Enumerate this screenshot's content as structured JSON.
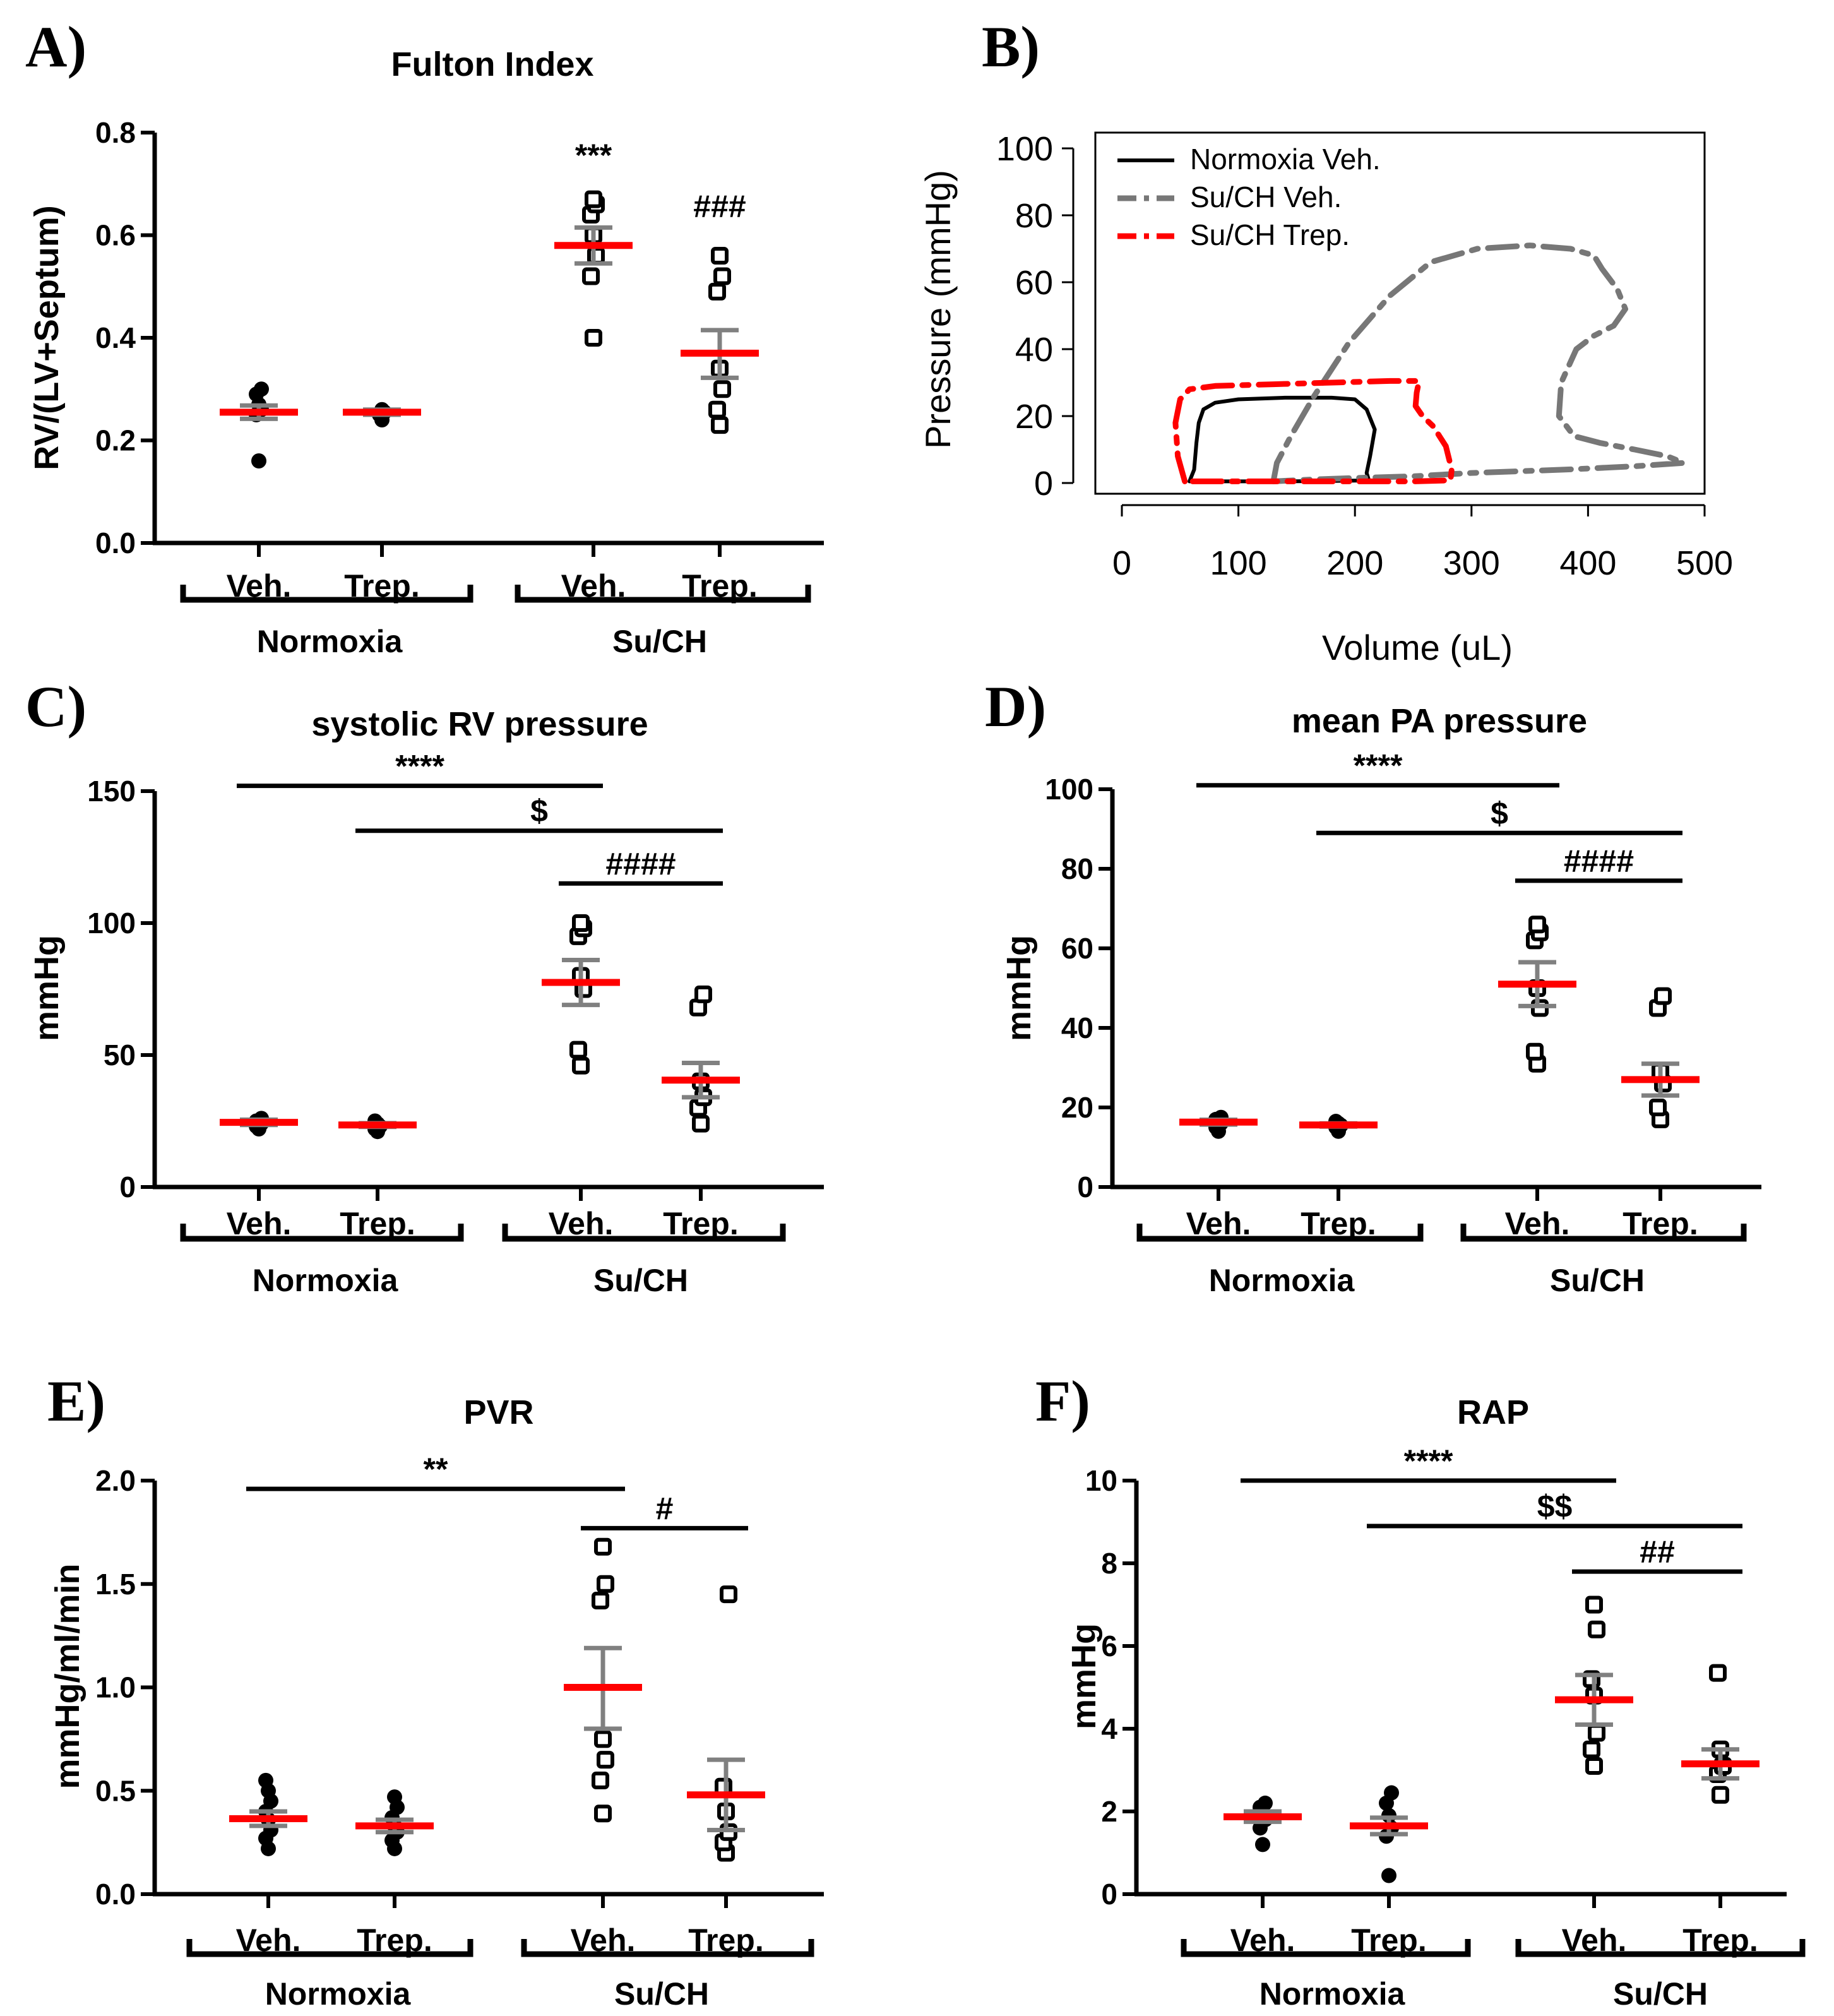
{
  "chart_data": [
    {
      "id": "A",
      "panel_label": "A)",
      "type": "scatter",
      "title": "Fulton Index",
      "ylabel": "RV/(LV+Septum)",
      "ylim": [
        0,
        0.8
      ],
      "yticks": [
        0.0,
        0.2,
        0.4,
        0.6,
        0.8
      ],
      "ytick_labels": [
        "0.0",
        "0.2",
        "0.4",
        "0.6",
        "0.8"
      ],
      "groups": [
        {
          "condition": "Normoxia",
          "treatment": "Veh.",
          "marker": "filled-circle",
          "points": [
            0.16,
            0.25,
            0.26,
            0.27,
            0.29,
            0.3
          ],
          "mean": 0.255,
          "sem": [
            0.242,
            0.268
          ]
        },
        {
          "condition": "Normoxia",
          "treatment": "Trep.",
          "marker": "filled-circle",
          "points": [
            0.24,
            0.25,
            0.255,
            0.26
          ],
          "mean": 0.255,
          "sem": [
            0.25,
            0.26
          ]
        },
        {
          "condition": "Su/CH",
          "treatment": "Veh.",
          "marker": "open-square",
          "points": [
            0.4,
            0.52,
            0.56,
            0.6,
            0.64,
            0.66,
            0.67
          ],
          "mean": 0.58,
          "sem": [
            0.545,
            0.615
          ]
        },
        {
          "condition": "Su/CH",
          "treatment": "Trep.",
          "marker": "open-square",
          "points": [
            0.23,
            0.26,
            0.3,
            0.34,
            0.49,
            0.52,
            0.56
          ],
          "mean": 0.37,
          "sem": [
            0.322,
            0.415
          ]
        }
      ],
      "category_labels": [
        "Veh.",
        "Trep.",
        "Veh.",
        "Trep."
      ],
      "group_labels": [
        "Normoxia",
        "Su/CH"
      ],
      "annotations": [
        {
          "text": "***",
          "group_index": 2,
          "y": 0.735
        },
        {
          "text": "###",
          "group_index": 3,
          "y": 0.635
        }
      ]
    },
    {
      "id": "B",
      "panel_label": "B)",
      "type": "line",
      "title": "",
      "xlabel": "Volume (uL)",
      "ylabel": "Pressure (mmHg)",
      "xlim": [
        0,
        500
      ],
      "ylim": [
        0,
        100
      ],
      "xticks": [
        0,
        100,
        200,
        300,
        400,
        500
      ],
      "yticks": [
        0,
        20,
        40,
        60,
        80,
        100
      ],
      "legend": {
        "placement": "top-left",
        "entries": [
          "Normoxia Veh.",
          "Su/CH Veh.",
          "Su/CH Trep."
        ]
      },
      "series": [
        {
          "name": "Normoxia Veh.",
          "color": "#000000",
          "dash": "solid",
          "points": [
            [
              58,
              0.5
            ],
            [
              62,
              4
            ],
            [
              64,
              12
            ],
            [
              66,
              18
            ],
            [
              70,
              22
            ],
            [
              80,
              24
            ],
            [
              100,
              25
            ],
            [
              140,
              25.5
            ],
            [
              180,
              25.5
            ],
            [
              200,
              25
            ],
            [
              210,
              22
            ],
            [
              217,
              16
            ],
            [
              213,
              8
            ],
            [
              210,
              3
            ],
            [
              212,
              0.8
            ],
            [
              180,
              0.6
            ],
            [
              140,
              0.5
            ],
            [
              100,
              0.5
            ],
            [
              58,
              0.5
            ]
          ]
        },
        {
          "name": "Su/CH Veh.",
          "color": "#777777",
          "dash": "dashdot",
          "points": [
            [
              130,
              0.5
            ],
            [
              133,
              6
            ],
            [
              145,
              14
            ],
            [
              165,
              26
            ],
            [
              195,
              42
            ],
            [
              230,
              56
            ],
            [
              265,
              66
            ],
            [
              305,
              70
            ],
            [
              350,
              71
            ],
            [
              385,
              70
            ],
            [
              405,
              68
            ],
            [
              412,
              64
            ],
            [
              425,
              58
            ],
            [
              432,
              52
            ],
            [
              422,
              47
            ],
            [
              405,
              44
            ],
            [
              390,
              40
            ],
            [
              377,
              30
            ],
            [
              375,
              20
            ],
            [
              388,
              14
            ],
            [
              410,
              12
            ],
            [
              440,
              10
            ],
            [
              468,
              8
            ],
            [
              482,
              6
            ],
            [
              440,
              5
            ],
            [
              380,
              4
            ],
            [
              300,
              3
            ],
            [
              250,
              2
            ],
            [
              200,
              1.5
            ],
            [
              160,
              1
            ],
            [
              130,
              0.5
            ]
          ]
        },
        {
          "name": "Su/CH Trep.",
          "color": "#ff0000",
          "dash": "dashdot",
          "points": [
            [
              54,
              0.5
            ],
            [
              48,
              8
            ],
            [
              46,
              18
            ],
            [
              50,
              25
            ],
            [
              58,
              28
            ],
            [
              80,
              29
            ],
            [
              130,
              29.5
            ],
            [
              180,
              30
            ],
            [
              230,
              30.5
            ],
            [
              255,
              30.5
            ],
            [
              253,
              27
            ],
            [
              252,
              23
            ],
            [
              258,
              20
            ],
            [
              267,
              17
            ],
            [
              278,
              11
            ],
            [
              283,
              4
            ],
            [
              282,
              0.8
            ],
            [
              250,
              0.5
            ],
            [
              200,
              0.5
            ],
            [
              150,
              0.5
            ],
            [
              100,
              0.5
            ],
            [
              54,
              0.5
            ]
          ]
        }
      ]
    },
    {
      "id": "C",
      "panel_label": "C)",
      "type": "scatter",
      "title": "systolic RV pressure",
      "ylabel": "mmHg",
      "ylim": [
        0,
        150
      ],
      "yticks": [
        0,
        50,
        100,
        150
      ],
      "ytick_labels": [
        "0",
        "50",
        "100",
        "150"
      ],
      "groups": [
        {
          "condition": "Normoxia",
          "treatment": "Veh.",
          "marker": "filled-circle",
          "points": [
            22,
            23,
            24,
            24.5,
            25,
            26
          ],
          "mean": 24.5,
          "sem": [
            23.5,
            25.5
          ]
        },
        {
          "condition": "Normoxia",
          "treatment": "Trep.",
          "marker": "filled-circle",
          "points": [
            21,
            22,
            23,
            24,
            25
          ],
          "mean": 23.5,
          "sem": [
            22.8,
            24.2
          ]
        },
        {
          "condition": "Su/CH",
          "treatment": "Veh.",
          "marker": "open-square",
          "points": [
            46,
            52,
            75,
            80,
            95,
            98,
            100
          ],
          "mean": 77.5,
          "sem": [
            69,
            86
          ]
        },
        {
          "condition": "Su/CH",
          "treatment": "Trep.",
          "marker": "open-square",
          "points": [
            24,
            30,
            34,
            40,
            68,
            73
          ],
          "mean": 40.5,
          "sem": [
            34,
            47
          ]
        }
      ],
      "category_labels": [
        "Veh.",
        "Trep.",
        "Veh.",
        "Trep."
      ],
      "group_labels": [
        "Normoxia",
        "Su/CH"
      ],
      "brackets": [
        {
          "text": "****",
          "from_group": 0,
          "to_group": 2,
          "y": 152
        },
        {
          "text": "$",
          "from_group": 1,
          "to_group": 3,
          "y": 135
        },
        {
          "text": "####",
          "from_group": 2,
          "to_group": 3,
          "y": 115
        }
      ]
    },
    {
      "id": "D",
      "panel_label": "D)",
      "type": "scatter",
      "title": "mean PA pressure",
      "ylabel": "mmHg",
      "ylim": [
        0,
        100
      ],
      "yticks": [
        0,
        20,
        40,
        60,
        80,
        100
      ],
      "ytick_labels": [
        "0",
        "20",
        "40",
        "60",
        "80",
        "100"
      ],
      "groups": [
        {
          "condition": "Normoxia",
          "treatment": "Veh.",
          "marker": "filled-circle",
          "points": [
            14,
            15,
            16,
            16.5,
            17,
            17.5
          ],
          "mean": 16.3,
          "sem": [
            15.7,
            16.9
          ]
        },
        {
          "condition": "Normoxia",
          "treatment": "Trep.",
          "marker": "filled-circle",
          "points": [
            14,
            15,
            15.5,
            16,
            16.5
          ],
          "mean": 15.6,
          "sem": [
            15.2,
            16.0
          ]
        },
        {
          "condition": "Su/CH",
          "treatment": "Veh.",
          "marker": "open-square",
          "points": [
            31,
            34,
            45,
            50,
            62,
            64,
            66
          ],
          "mean": 51,
          "sem": [
            45.5,
            56.5
          ]
        },
        {
          "condition": "Su/CH",
          "treatment": "Trep.",
          "marker": "open-square",
          "points": [
            17,
            20,
            26,
            29,
            45,
            48
          ],
          "mean": 27,
          "sem": [
            23,
            31
          ]
        }
      ],
      "category_labels": [
        "Veh.",
        "Trep.",
        "Veh.",
        "Trep."
      ],
      "group_labels": [
        "Normoxia",
        "Su/CH"
      ],
      "brackets": [
        {
          "text": "****",
          "from_group": 0,
          "to_group": 2,
          "y": 101
        },
        {
          "text": "$",
          "from_group": 1,
          "to_group": 3,
          "y": 89
        },
        {
          "text": "####",
          "from_group": 2,
          "to_group": 3,
          "y": 77
        }
      ]
    },
    {
      "id": "E",
      "panel_label": "E)",
      "type": "scatter",
      "title": "PVR",
      "ylabel": "mmHg/ml/min",
      "ylim": [
        0,
        2.0
      ],
      "yticks": [
        0.0,
        0.5,
        1.0,
        1.5,
        2.0
      ],
      "ytick_labels": [
        "0.0",
        "0.5",
        "1.0",
        "1.5",
        "2.0"
      ],
      "groups": [
        {
          "condition": "Normoxia",
          "treatment": "Veh.",
          "marker": "filled-circle",
          "points": [
            0.22,
            0.27,
            0.31,
            0.36,
            0.4,
            0.45,
            0.5,
            0.55
          ],
          "mean": 0.365,
          "sem": [
            0.33,
            0.4
          ]
        },
        {
          "condition": "Normoxia",
          "treatment": "Trep.",
          "marker": "filled-circle",
          "points": [
            0.22,
            0.26,
            0.3,
            0.33,
            0.37,
            0.42,
            0.47
          ],
          "mean": 0.33,
          "sem": [
            0.3,
            0.36
          ]
        },
        {
          "condition": "Su/CH",
          "treatment": "Veh.",
          "marker": "open-square",
          "points": [
            0.39,
            0.55,
            0.65,
            0.75,
            1.42,
            1.5,
            1.68
          ],
          "mean": 1.0,
          "sem": [
            0.8,
            1.19
          ]
        },
        {
          "condition": "Su/CH",
          "treatment": "Trep.",
          "marker": "open-square",
          "points": [
            0.2,
            0.25,
            0.3,
            0.4,
            0.52,
            1.45
          ],
          "mean": 0.48,
          "sem": [
            0.31,
            0.65
          ]
        }
      ],
      "category_labels": [
        "Veh.",
        "Trep.",
        "Veh.",
        "Trep."
      ],
      "group_labels": [
        "Normoxia",
        "Su/CH"
      ],
      "brackets": [
        {
          "text": "**",
          "from_group": 0,
          "to_group": 2,
          "y": 1.96
        },
        {
          "text": "#",
          "from_group": 2,
          "to_group": 3,
          "y": 1.77
        }
      ]
    },
    {
      "id": "F",
      "panel_label": "F)",
      "type": "scatter",
      "title": "RAP",
      "ylabel": "mmHg",
      "ylim": [
        0,
        10
      ],
      "yticks": [
        0,
        2,
        4,
        6,
        8,
        10
      ],
      "ytick_labels": [
        "0",
        "2",
        "4",
        "6",
        "8",
        "10"
      ],
      "groups": [
        {
          "condition": "Normoxia",
          "treatment": "Veh.",
          "marker": "filled-circle",
          "points": [
            1.2,
            1.6,
            1.8,
            2.0,
            2.1,
            2.2
          ],
          "mean": 1.87,
          "sem": [
            1.75,
            2.0
          ]
        },
        {
          "condition": "Normoxia",
          "treatment": "Trep.",
          "marker": "filled-circle",
          "points": [
            0.45,
            1.4,
            1.6,
            1.9,
            2.2,
            2.45
          ],
          "mean": 1.65,
          "sem": [
            1.45,
            1.85
          ]
        },
        {
          "condition": "Su/CH",
          "treatment": "Veh.",
          "marker": "open-square",
          "points": [
            3.1,
            3.5,
            3.9,
            4.8,
            5.2,
            6.4,
            7.0
          ],
          "mean": 4.7,
          "sem": [
            4.1,
            5.3
          ]
        },
        {
          "condition": "Su/CH",
          "treatment": "Trep.",
          "marker": "open-square",
          "points": [
            2.4,
            2.9,
            3.1,
            3.5,
            5.35
          ],
          "mean": 3.15,
          "sem": [
            2.8,
            3.5
          ]
        }
      ],
      "category_labels": [
        "Veh.",
        "Trep.",
        "Veh.",
        "Trep."
      ],
      "group_labels": [
        "Normoxia",
        "Su/CH"
      ],
      "brackets": [
        {
          "text": "****",
          "from_group": 0,
          "to_group": 2,
          "y": 10.0
        },
        {
          "text": "$$",
          "from_group": 1,
          "to_group": 3,
          "y": 8.9
        },
        {
          "text": "##",
          "from_group": 2,
          "to_group": 3,
          "y": 7.8
        }
      ]
    }
  ]
}
